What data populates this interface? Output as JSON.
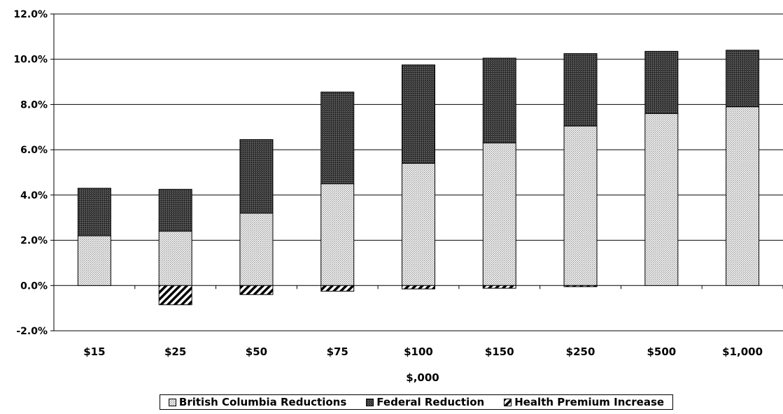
{
  "chart_data": {
    "type": "bar",
    "stacked": true,
    "title": "",
    "xlabel": "$,000",
    "ylabel": "",
    "ylim": [
      -2.0,
      12.0
    ],
    "y_ticks": [
      -2.0,
      0.0,
      2.0,
      4.0,
      6.0,
      8.0,
      10.0,
      12.0
    ],
    "y_tick_labels": [
      "-2.0%",
      "0.0%",
      "2.0%",
      "4.0%",
      "6.0%",
      "8.0%",
      "10.0%",
      "12.0%"
    ],
    "categories": [
      "$15",
      "$25",
      "$50",
      "$75",
      "$100",
      "$150",
      "$250",
      "$500",
      "$1,000"
    ],
    "grid": "horizontal",
    "legend_position": "bottom",
    "series": [
      {
        "name": "British Columbia Reductions",
        "color": "#d9d9d9",
        "pattern": "light-dots",
        "values": [
          2.2,
          2.4,
          3.2,
          4.5,
          5.4,
          6.3,
          7.05,
          7.6,
          7.9
        ]
      },
      {
        "name": "Federal Reduction",
        "color": "#333333",
        "pattern": "dark-dots",
        "values": [
          2.1,
          1.85,
          3.25,
          4.05,
          4.35,
          3.75,
          3.2,
          2.75,
          2.5
        ]
      },
      {
        "name": "Health Premium Increase",
        "color": "#000000",
        "pattern": "diagonal-hatch",
        "values": [
          0.0,
          -0.85,
          -0.4,
          -0.25,
          -0.15,
          -0.12,
          -0.05,
          0.0,
          0.0
        ]
      }
    ]
  }
}
